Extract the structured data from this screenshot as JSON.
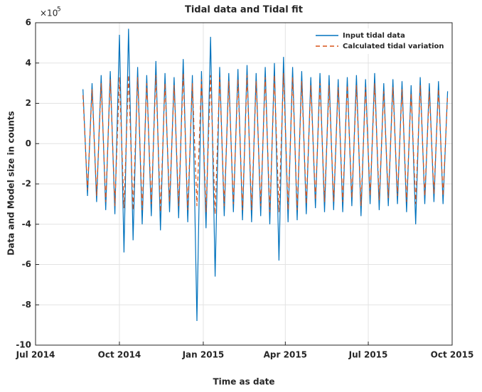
{
  "chart_data": {
    "type": "line",
    "title": "Tidal data and Tidal fit",
    "xlabel": "Time as date",
    "ylabel": "Data and Model size in counts",
    "y_exponent_base": "×10",
    "y_exponent": "5",
    "x": [
      "2014-08-22",
      "2014-08-27",
      "2014-09-01",
      "2014-09-06",
      "2014-09-11",
      "2014-09-16",
      "2014-09-21",
      "2014-09-26",
      "2014-10-01",
      "2014-10-06",
      "2014-10-11",
      "2014-10-16",
      "2014-10-21",
      "2014-10-26",
      "2014-10-31",
      "2014-11-05",
      "2014-11-10",
      "2014-11-15",
      "2014-11-20",
      "2014-11-25",
      "2014-11-30",
      "2014-12-05",
      "2014-12-10",
      "2014-12-15",
      "2014-12-20",
      "2014-12-25",
      "2014-12-30",
      "2015-01-04",
      "2015-01-09",
      "2015-01-14",
      "2015-01-19",
      "2015-01-24",
      "2015-01-29",
      "2015-02-03",
      "2015-02-08",
      "2015-02-13",
      "2015-02-18",
      "2015-02-23",
      "2015-02-28",
      "2015-03-05",
      "2015-03-10",
      "2015-03-15",
      "2015-03-20",
      "2015-03-25",
      "2015-03-30",
      "2015-04-04",
      "2015-04-09",
      "2015-04-14",
      "2015-04-19",
      "2015-04-24",
      "2015-04-29",
      "2015-05-04",
      "2015-05-09",
      "2015-05-14",
      "2015-05-19",
      "2015-05-24",
      "2015-05-29",
      "2015-06-03",
      "2015-06-08",
      "2015-06-13",
      "2015-06-18",
      "2015-06-23",
      "2015-06-28",
      "2015-07-03",
      "2015-07-08",
      "2015-07-13",
      "2015-07-18",
      "2015-07-23",
      "2015-07-28",
      "2015-08-02",
      "2015-08-07",
      "2015-08-12",
      "2015-08-17",
      "2015-08-22",
      "2015-08-27",
      "2015-09-01",
      "2015-09-06",
      "2015-09-11",
      "2015-09-16",
      "2015-09-21",
      "2015-09-26"
    ],
    "series": [
      {
        "name": "Input tidal data",
        "color": "#0072BD",
        "dash": false,
        "values": [
          2.7,
          -2.6,
          3.0,
          -2.9,
          3.4,
          -3.3,
          3.6,
          -3.5,
          5.4,
          -5.4,
          5.7,
          -4.8,
          3.8,
          -4.0,
          3.4,
          -3.6,
          4.1,
          -4.3,
          3.5,
          -3.4,
          3.3,
          -3.7,
          4.2,
          -3.9,
          3.4,
          -8.8,
          3.6,
          -4.2,
          5.3,
          -6.6,
          3.8,
          -3.6,
          3.5,
          -3.4,
          3.7,
          -3.8,
          3.9,
          -3.9,
          3.5,
          -3.6,
          3.8,
          -4.0,
          4.0,
          -5.8,
          4.3,
          -3.9,
          3.8,
          -3.8,
          3.6,
          -3.5,
          3.3,
          -3.2,
          3.5,
          -3.4,
          3.4,
          -3.3,
          3.2,
          -3.4,
          3.3,
          -3.1,
          3.4,
          -3.6,
          3.2,
          -3.0,
          3.5,
          -3.3,
          3.0,
          -3.1,
          3.2,
          -3.0,
          3.1,
          -3.4,
          2.9,
          -4.0,
          3.3,
          -3.0,
          3.0,
          -2.9,
          3.1,
          -3.0,
          2.6
        ]
      },
      {
        "name": "Calculated tidal variation",
        "color": "#D95319",
        "dash": true,
        "values": [
          2.4,
          -2.3,
          2.7,
          -2.6,
          3.0,
          -2.9,
          3.2,
          -3.1,
          3.3,
          -3.2,
          3.4,
          -3.3,
          3.3,
          -3.3,
          3.0,
          -3.0,
          3.4,
          -3.4,
          3.0,
          -2.9,
          2.9,
          -3.1,
          3.5,
          -3.3,
          3.0,
          -3.1,
          3.2,
          -3.4,
          3.4,
          -3.5,
          3.3,
          -3.1,
          3.1,
          -3.0,
          3.2,
          -3.3,
          3.4,
          -3.3,
          3.1,
          -3.1,
          3.3,
          -3.4,
          3.4,
          -3.4,
          3.5,
          -3.3,
          3.3,
          -3.3,
          3.1,
          -3.0,
          2.9,
          -2.8,
          3.0,
          -2.9,
          2.9,
          -2.9,
          2.8,
          -2.9,
          2.9,
          -2.7,
          2.9,
          -3.1,
          2.8,
          -2.6,
          3.0,
          -2.8,
          2.6,
          -2.7,
          2.8,
          -2.6,
          2.7,
          -2.9,
          2.5,
          -3.0,
          2.9,
          -2.6,
          2.6,
          -2.5,
          2.7,
          -2.6,
          2.4
        ]
      }
    ],
    "xlim": [
      "2014-07-01",
      "2015-10-01"
    ],
    "xticks": [
      {
        "value": "2014-07-01",
        "label": "Jul 2014"
      },
      {
        "value": "2014-10-01",
        "label": "Oct 2014"
      },
      {
        "value": "2015-01-01",
        "label": "Jan 2015"
      },
      {
        "value": "2015-04-01",
        "label": "Apr 2015"
      },
      {
        "value": "2015-07-01",
        "label": "Jul 2015"
      },
      {
        "value": "2015-10-01",
        "label": "Oct 2015"
      }
    ],
    "ylim": [
      -10,
      6
    ],
    "yticks": [
      -10,
      -8,
      -6,
      -4,
      -2,
      0,
      2,
      4,
      6
    ],
    "grid": true,
    "legend": "top-right"
  }
}
